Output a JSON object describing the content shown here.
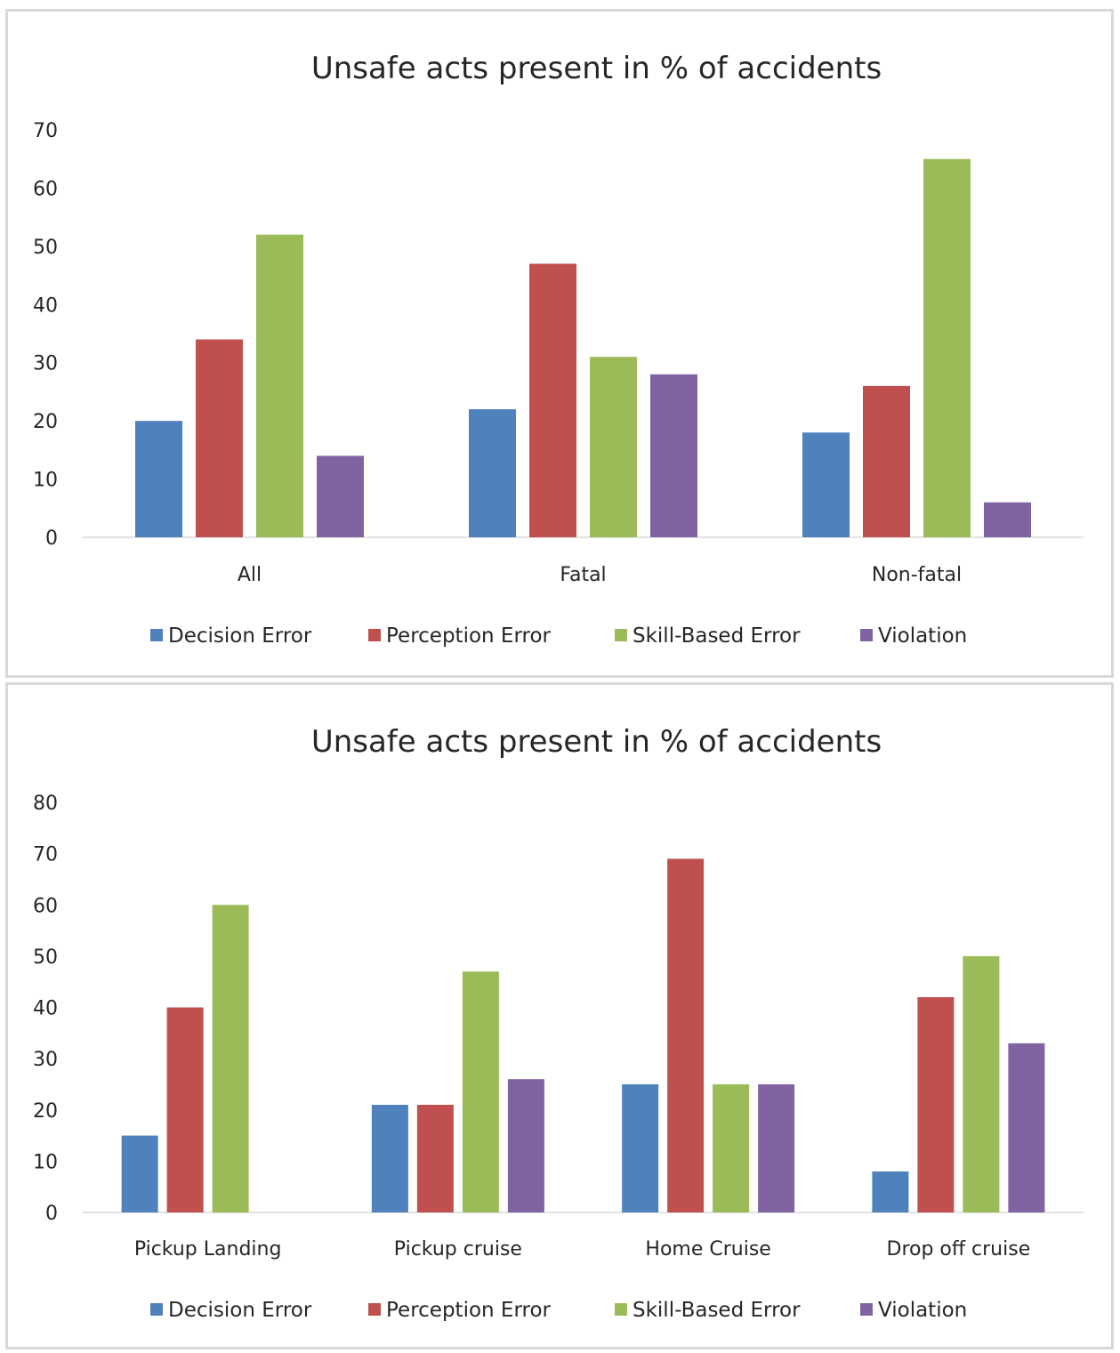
{
  "chart_data": [
    {
      "type": "bar",
      "title": "Unsafe acts present in % of accidents",
      "categories": [
        "All",
        "Fatal",
        "Non-fatal"
      ],
      "series": [
        {
          "name": "Decision Error",
          "color": "#4f81bd",
          "values": [
            20,
            22,
            18
          ]
        },
        {
          "name": "Perception Error",
          "color": "#c0504d",
          "values": [
            34,
            47,
            26
          ]
        },
        {
          "name": "Skill-Based Error",
          "color": "#9bbb59",
          "values": [
            52,
            31,
            65
          ]
        },
        {
          "name": "Violation",
          "color": "#8064a2",
          "values": [
            14,
            28,
            6
          ]
        }
      ],
      "yticks": [
        "0",
        "10",
        "20",
        "30",
        "40",
        "50",
        "60",
        "70"
      ],
      "ylim": [
        0,
        70
      ],
      "grid": false,
      "legend_position": "bottom"
    },
    {
      "type": "bar",
      "title": "Unsafe acts present in % of accidents",
      "categories": [
        "Pickup Landing",
        "Pickup cruise",
        "Home Cruise",
        "Drop off cruise"
      ],
      "series": [
        {
          "name": "Decision Error",
          "color": "#4f81bd",
          "values": [
            15,
            21,
            25,
            8
          ]
        },
        {
          "name": "Perception Error",
          "color": "#c0504d",
          "values": [
            40,
            21,
            69,
            42
          ]
        },
        {
          "name": "Skill-Based Error",
          "color": "#9bbb59",
          "values": [
            60,
            47,
            25,
            50
          ]
        },
        {
          "name": "Violation",
          "color": "#8064a2",
          "values": [
            0,
            26,
            25,
            33
          ]
        }
      ],
      "yticks": [
        "0",
        "10",
        "20",
        "30",
        "40",
        "50",
        "60",
        "70",
        "80"
      ],
      "ylim": [
        0,
        80
      ],
      "grid": false,
      "legend_position": "bottom"
    }
  ]
}
